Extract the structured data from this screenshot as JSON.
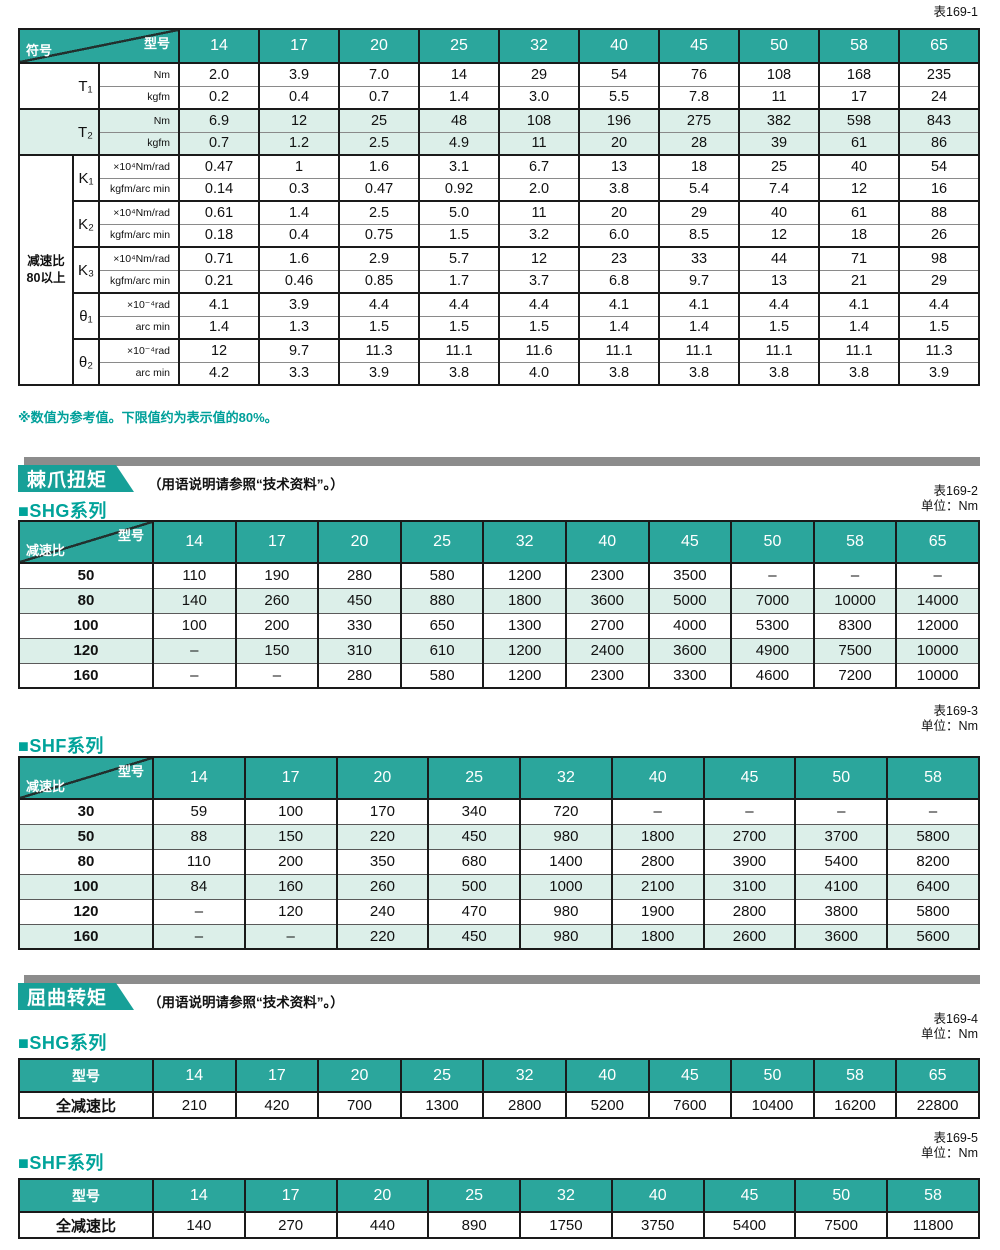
{
  "colors": {
    "accent_header": "#2ba69c",
    "banner_box": "#17a098",
    "banner_bar": "#8c8c8c",
    "stripe": "#dcefe9",
    "series_text": "#00a39a"
  },
  "footnote": "※数值为参考值。下限值约为表示值的80%。",
  "table1": {
    "tag": "表169-1",
    "corner_top": "型号",
    "corner_bottom": "符号",
    "side_label": "减速比\n80以上",
    "models": [
      "14",
      "17",
      "20",
      "25",
      "32",
      "40",
      "45",
      "50",
      "58",
      "65"
    ],
    "groups": [
      {
        "symbol": "T₁",
        "shade": false,
        "rows": [
          {
            "unit": "Nm",
            "values": [
              "2.0",
              "3.9",
              "7.0",
              "14",
              "29",
              "54",
              "76",
              "108",
              "168",
              "235"
            ]
          },
          {
            "unit": "kgfm",
            "values": [
              "0.2",
              "0.4",
              "0.7",
              "1.4",
              "3.0",
              "5.5",
              "7.8",
              "11",
              "17",
              "24"
            ]
          }
        ]
      },
      {
        "symbol": "T₂",
        "shade": true,
        "rows": [
          {
            "unit": "Nm",
            "values": [
              "6.9",
              "12",
              "25",
              "48",
              "108",
              "196",
              "275",
              "382",
              "598",
              "843"
            ]
          },
          {
            "unit": "kgfm",
            "values": [
              "0.7",
              "1.2",
              "2.5",
              "4.9",
              "11",
              "20",
              "28",
              "39",
              "61",
              "86"
            ]
          }
        ]
      },
      {
        "symbol": "K₁",
        "shade": false,
        "rows": [
          {
            "unit": "×10⁴Nm/rad",
            "values": [
              "0.47",
              "1",
              "1.6",
              "3.1",
              "6.7",
              "13",
              "18",
              "25",
              "40",
              "54"
            ]
          },
          {
            "unit": "kgfm/arc min",
            "values": [
              "0.14",
              "0.3",
              "0.47",
              "0.92",
              "2.0",
              "3.8",
              "5.4",
              "7.4",
              "12",
              "16"
            ]
          }
        ]
      },
      {
        "symbol": "K₂",
        "shade": false,
        "rows": [
          {
            "unit": "×10⁴Nm/rad",
            "values": [
              "0.61",
              "1.4",
              "2.5",
              "5.0",
              "11",
              "20",
              "29",
              "40",
              "61",
              "88"
            ]
          },
          {
            "unit": "kgfm/arc min",
            "values": [
              "0.18",
              "0.4",
              "0.75",
              "1.5",
              "3.2",
              "6.0",
              "8.5",
              "12",
              "18",
              "26"
            ]
          }
        ]
      },
      {
        "symbol": "K₃",
        "shade": false,
        "rows": [
          {
            "unit": "×10⁴Nm/rad",
            "values": [
              "0.71",
              "1.6",
              "2.9",
              "5.7",
              "12",
              "23",
              "33",
              "44",
              "71",
              "98"
            ]
          },
          {
            "unit": "kgfm/arc min",
            "values": [
              "0.21",
              "0.46",
              "0.85",
              "1.7",
              "3.7",
              "6.8",
              "9.7",
              "13",
              "21",
              "29"
            ]
          }
        ]
      },
      {
        "symbol": "θ₁",
        "shade": false,
        "rows": [
          {
            "unit": "×10⁻⁴rad",
            "values": [
              "4.1",
              "3.9",
              "4.4",
              "4.4",
              "4.4",
              "4.1",
              "4.1",
              "4.4",
              "4.1",
              "4.4"
            ]
          },
          {
            "unit": "arc min",
            "values": [
              "1.4",
              "1.3",
              "1.5",
              "1.5",
              "1.5",
              "1.4",
              "1.4",
              "1.5",
              "1.4",
              "1.5"
            ]
          }
        ]
      },
      {
        "symbol": "θ₂",
        "shade": false,
        "rows": [
          {
            "unit": "×10⁻⁴rad",
            "values": [
              "12",
              "9.7",
              "11.3",
              "11.1",
              "11.6",
              "11.1",
              "11.1",
              "11.1",
              "11.1",
              "11.3"
            ]
          },
          {
            "unit": "arc min",
            "values": [
              "4.2",
              "3.3",
              "3.9",
              "3.8",
              "4.0",
              "3.8",
              "3.8",
              "3.8",
              "3.8",
              "3.9"
            ]
          }
        ]
      }
    ]
  },
  "ratchet": {
    "title": "棘爪扭矩",
    "note": "（用语说明请参照“技术资料”。）",
    "shg": {
      "tag": "表169-2",
      "unit": "单位：Nm",
      "series": "■SHG系列",
      "corner_top": "型号",
      "corner_bottom": "减速比",
      "models": [
        "14",
        "17",
        "20",
        "25",
        "32",
        "40",
        "45",
        "50",
        "58",
        "65"
      ],
      "rows": [
        {
          "ratio": "50",
          "values": [
            "110",
            "190",
            "280",
            "580",
            "1200",
            "2300",
            "3500",
            "–",
            "–",
            "–"
          ]
        },
        {
          "ratio": "80",
          "values": [
            "140",
            "260",
            "450",
            "880",
            "1800",
            "3600",
            "5000",
            "7000",
            "10000",
            "14000"
          ]
        },
        {
          "ratio": "100",
          "values": [
            "100",
            "200",
            "330",
            "650",
            "1300",
            "2700",
            "4000",
            "5300",
            "8300",
            "12000"
          ]
        },
        {
          "ratio": "120",
          "values": [
            "–",
            "150",
            "310",
            "610",
            "1200",
            "2400",
            "3600",
            "4900",
            "7500",
            "10000"
          ]
        },
        {
          "ratio": "160",
          "values": [
            "–",
            "–",
            "280",
            "580",
            "1200",
            "2300",
            "3300",
            "4600",
            "7200",
            "10000"
          ]
        }
      ]
    },
    "shf": {
      "tag": "表169-3",
      "unit": "单位：Nm",
      "series": "■SHF系列",
      "corner_top": "型号",
      "corner_bottom": "减速比",
      "models": [
        "14",
        "17",
        "20",
        "25",
        "32",
        "40",
        "45",
        "50",
        "58"
      ],
      "rows": [
        {
          "ratio": "30",
          "values": [
            "59",
            "100",
            "170",
            "340",
            "720",
            "–",
            "–",
            "–",
            "–"
          ]
        },
        {
          "ratio": "50",
          "values": [
            "88",
            "150",
            "220",
            "450",
            "980",
            "1800",
            "2700",
            "3700",
            "5800"
          ]
        },
        {
          "ratio": "80",
          "values": [
            "110",
            "200",
            "350",
            "680",
            "1400",
            "2800",
            "3900",
            "5400",
            "8200"
          ]
        },
        {
          "ratio": "100",
          "values": [
            "84",
            "160",
            "260",
            "500",
            "1000",
            "2100",
            "3100",
            "4100",
            "6400"
          ]
        },
        {
          "ratio": "120",
          "values": [
            "–",
            "120",
            "240",
            "470",
            "980",
            "1900",
            "2800",
            "3800",
            "5800"
          ]
        },
        {
          "ratio": "160",
          "values": [
            "–",
            "–",
            "220",
            "450",
            "980",
            "1800",
            "2600",
            "3600",
            "5600"
          ]
        }
      ]
    }
  },
  "buckling": {
    "title": "屈曲转矩",
    "note": "（用语说明请参照“技术资料”。）",
    "shg": {
      "tag": "表169-4",
      "unit": "单位：Nm",
      "series": "■SHG系列",
      "header": "型号",
      "row_label": "全减速比",
      "models": [
        "14",
        "17",
        "20",
        "25",
        "32",
        "40",
        "45",
        "50",
        "58",
        "65"
      ],
      "values": [
        "210",
        "420",
        "700",
        "1300",
        "2800",
        "5200",
        "7600",
        "10400",
        "16200",
        "22800"
      ]
    },
    "shf": {
      "tag": "表169-5",
      "unit": "单位：Nm",
      "series": "■SHF系列",
      "header": "型号",
      "row_label": "全减速比",
      "models": [
        "14",
        "17",
        "20",
        "25",
        "32",
        "40",
        "45",
        "50",
        "58"
      ],
      "values": [
        "140",
        "270",
        "440",
        "890",
        "1750",
        "3750",
        "5400",
        "7500",
        "11800"
      ]
    }
  }
}
